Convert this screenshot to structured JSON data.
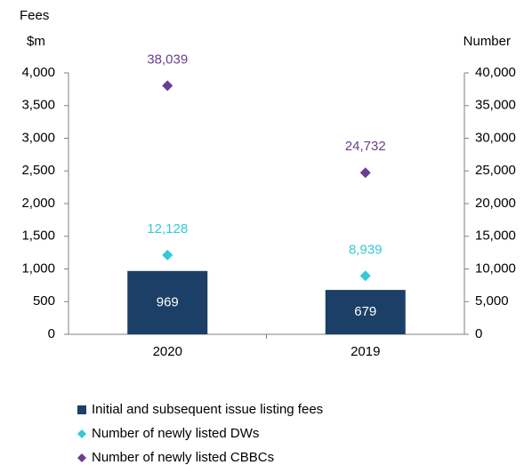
{
  "chart_data": {
    "type": "bar",
    "ylabel": [
      "Fees",
      "$m"
    ],
    "y2label": "Number",
    "categories": [
      "2020",
      "2019"
    ],
    "series": [
      {
        "name": "Initial and subsequent issue listing fees",
        "type": "bar",
        "color": "#1b3f66",
        "values": [
          969,
          679
        ],
        "value_labels": [
          "969",
          "679"
        ]
      },
      {
        "name": "Number of newly listed DWs",
        "type": "scatter",
        "axis": "y2",
        "color": "#33c9d6",
        "values": [
          12128,
          8939
        ],
        "value_labels": [
          "12,128",
          "8,939"
        ]
      },
      {
        "name": "Number of newly listed CBBCs",
        "type": "scatter",
        "axis": "y2",
        "color": "#6a3d8f",
        "values": [
          38039,
          24732
        ],
        "value_labels": [
          "38,039",
          "24,732"
        ]
      }
    ],
    "ylim": [
      0,
      4000
    ],
    "yticks": [
      0,
      500,
      {
        "value": 1000,
        "label": "1,000"
      },
      {
        "value": 1500,
        "label": "1,500"
      },
      {
        "value": 2000,
        "label": "2,000"
      },
      {
        "value": 2500,
        "label": "2,500"
      },
      {
        "value": 3000,
        "label": "3,000"
      },
      {
        "value": 3500,
        "label": "3,500"
      },
      {
        "value": 4000,
        "label": "4,000"
      }
    ],
    "y2lim": [
      0,
      40000
    ],
    "y2ticks": [
      0,
      {
        "value": 5000,
        "label": "5,000"
      },
      {
        "value": 10000,
        "label": "10,000"
      },
      {
        "value": 15000,
        "label": "15,000"
      },
      {
        "value": 20000,
        "label": "20,000"
      },
      {
        "value": 25000,
        "label": "25,000"
      },
      {
        "value": 30000,
        "label": "30,000"
      },
      {
        "value": 35000,
        "label": "35,000"
      },
      {
        "value": 40000,
        "label": "40,000"
      }
    ],
    "legend": "bottom"
  }
}
